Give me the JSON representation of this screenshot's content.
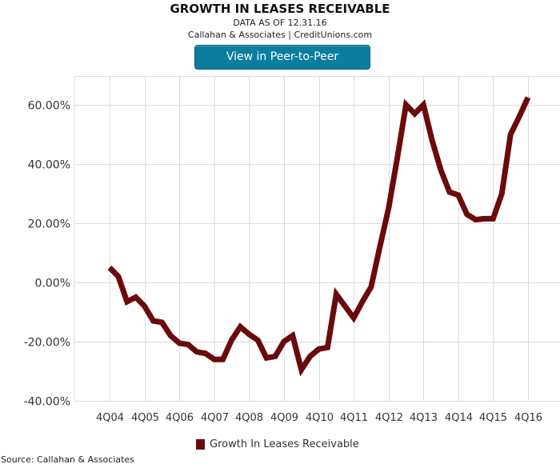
{
  "header": {
    "title": "GROWTH IN LEASES RECEIVABLE",
    "subtitle": "DATA AS OF 12.31.16",
    "source": "Callahan & Associates | CreditUnions.com",
    "button_label": "View in Peer-to-Peer"
  },
  "footer": {
    "source": "Source: Callahan & Associates"
  },
  "colors": {
    "line": "#6b0a0a",
    "grid": "#dcdcdc",
    "button": "#0b7ea0"
  },
  "chart_data": {
    "type": "line",
    "title": "GROWTH IN LEASES RECEIVABLE",
    "xlabel": "",
    "ylabel": "",
    "ylim": [
      -40,
      70
    ],
    "yticks": [
      60,
      40,
      20,
      0,
      -20,
      -40
    ],
    "ytick_labels": [
      "60.00%",
      "40.00%",
      "20.00%",
      "0.00%",
      "-20.00%",
      "-40.00%"
    ],
    "xtick_labels": [
      "4Q04",
      "4Q05",
      "4Q06",
      "4Q07",
      "4Q08",
      "4Q09",
      "4Q10",
      "4Q11",
      "4Q12",
      "4Q13",
      "4Q14",
      "4Q15",
      "4Q16"
    ],
    "grid": true,
    "legend_position": "bottom-center",
    "series": [
      {
        "name": "Growth In Leases Receivable",
        "quarters": [
          "4Q04",
          "1Q05",
          "2Q05",
          "3Q05",
          "4Q05",
          "1Q06",
          "2Q06",
          "3Q06",
          "4Q06",
          "1Q07",
          "2Q07",
          "3Q07",
          "4Q07",
          "1Q08",
          "2Q08",
          "3Q08",
          "4Q08",
          "1Q09",
          "2Q09",
          "3Q09",
          "4Q09",
          "1Q10",
          "2Q10",
          "3Q10",
          "4Q10",
          "1Q11",
          "2Q11",
          "3Q11",
          "4Q11",
          "1Q12",
          "2Q12",
          "3Q12",
          "4Q12",
          "1Q13",
          "2Q13",
          "3Q13",
          "4Q13",
          "1Q14",
          "2Q14",
          "3Q14",
          "4Q14",
          "1Q15",
          "2Q15",
          "3Q15",
          "4Q15",
          "1Q16",
          "2Q16",
          "3Q16",
          "4Q16"
        ],
        "values": [
          5,
          2,
          -6.5,
          -5,
          -8,
          -13,
          -13.5,
          -18,
          -20.5,
          -21,
          -23.5,
          -24,
          -26,
          -26,
          -19.5,
          -15,
          -17.5,
          -19.5,
          -25.5,
          -25,
          -20,
          -18,
          -29.5,
          -25,
          -22.5,
          -22,
          -4,
          -8,
          -12,
          -6.5,
          -1.5,
          12,
          25,
          42,
          60,
          57,
          60,
          48,
          38,
          30.5,
          29.5,
          23,
          21.2,
          21.5,
          21.5,
          30,
          50,
          56,
          62.5
        ]
      }
    ]
  }
}
